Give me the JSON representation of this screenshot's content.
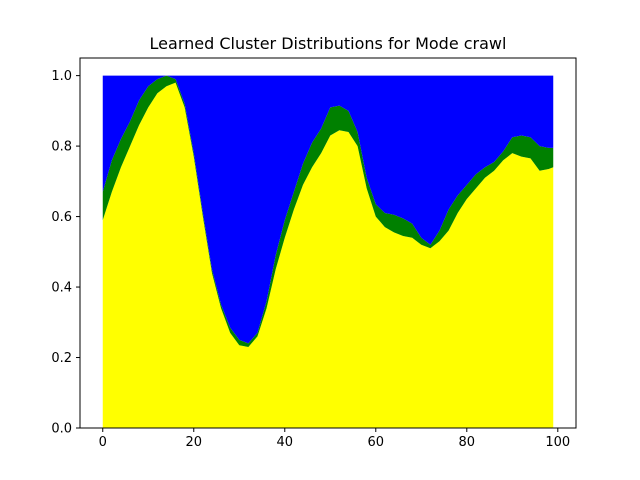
{
  "chart_data": {
    "type": "area",
    "title": "Learned Cluster Distributions for Mode crawl",
    "xlabel": "",
    "ylabel": "",
    "xlim": [
      -5,
      104
    ],
    "ylim": [
      0,
      1.05
    ],
    "xticks": [
      0,
      20,
      40,
      60,
      80,
      100
    ],
    "yticks": [
      0.0,
      0.2,
      0.4,
      0.6,
      0.8,
      1.0
    ],
    "xtick_labels": [
      "0",
      "20",
      "40",
      "60",
      "80",
      "100"
    ],
    "ytick_labels": [
      "0.0",
      "0.2",
      "0.4",
      "0.6",
      "0.8",
      "1.0"
    ],
    "grid": false,
    "stacked": true,
    "x": [
      0,
      2,
      4,
      6,
      8,
      10,
      12,
      14,
      16,
      18,
      20,
      22,
      24,
      26,
      28,
      30,
      32,
      34,
      36,
      38,
      40,
      42,
      44,
      46,
      48,
      50,
      52,
      54,
      56,
      58,
      60,
      62,
      64,
      66,
      68,
      70,
      72,
      74,
      76,
      78,
      80,
      82,
      84,
      86,
      88,
      90,
      92,
      94,
      96,
      98,
      99
    ],
    "series": [
      {
        "color": "#ffff00",
        "values": [
          0.59,
          0.67,
          0.74,
          0.8,
          0.86,
          0.91,
          0.95,
          0.97,
          0.98,
          0.91,
          0.77,
          0.6,
          0.44,
          0.34,
          0.27,
          0.235,
          0.23,
          0.26,
          0.34,
          0.45,
          0.54,
          0.62,
          0.69,
          0.74,
          0.78,
          0.83,
          0.845,
          0.84,
          0.8,
          0.68,
          0.6,
          0.57,
          0.555,
          0.545,
          0.54,
          0.52,
          0.51,
          0.53,
          0.56,
          0.61,
          0.65,
          0.68,
          0.71,
          0.73,
          0.76,
          0.78,
          0.77,
          0.765,
          0.73,
          0.735,
          0.74
        ]
      },
      {
        "color": "#008000",
        "values": [
          0.08,
          0.09,
          0.08,
          0.07,
          0.07,
          0.06,
          0.04,
          0.03,
          0.01,
          0.01,
          0.01,
          0.01,
          0.01,
          0.01,
          0.015,
          0.015,
          0.01,
          0.01,
          0.02,
          0.04,
          0.05,
          0.05,
          0.06,
          0.07,
          0.07,
          0.08,
          0.07,
          0.06,
          0.04,
          0.03,
          0.035,
          0.04,
          0.05,
          0.05,
          0.04,
          0.02,
          0.01,
          0.03,
          0.06,
          0.05,
          0.04,
          0.04,
          0.03,
          0.025,
          0.025,
          0.045,
          0.06,
          0.06,
          0.07,
          0.06,
          0.055
        ]
      },
      {
        "color": "#0000ff",
        "values": [
          0.33,
          0.24,
          0.18,
          0.13,
          0.07,
          0.03,
          0.01,
          0.0,
          0.01,
          0.08,
          0.22,
          0.39,
          0.55,
          0.65,
          0.715,
          0.75,
          0.76,
          0.73,
          0.64,
          0.51,
          0.41,
          0.33,
          0.25,
          0.19,
          0.15,
          0.09,
          0.085,
          0.1,
          0.16,
          0.29,
          0.365,
          0.39,
          0.395,
          0.405,
          0.42,
          0.46,
          0.48,
          0.44,
          0.38,
          0.34,
          0.31,
          0.28,
          0.26,
          0.245,
          0.215,
          0.175,
          0.17,
          0.175,
          0.2,
          0.205,
          0.205
        ]
      }
    ]
  }
}
